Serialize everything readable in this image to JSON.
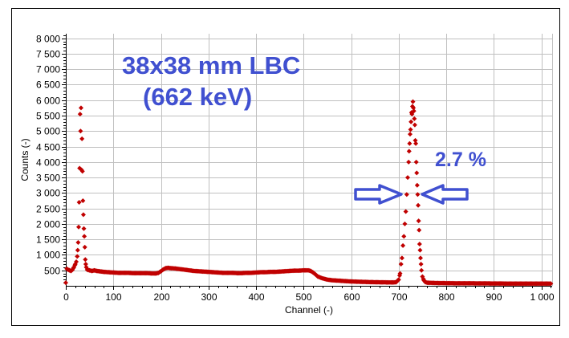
{
  "chart_data": {
    "type": "scatter",
    "title": "",
    "xlabel": "Channel (-)",
    "ylabel": "Counts (-)",
    "xlim": [
      0,
      1024
    ],
    "ylim": [
      0,
      8200
    ],
    "grid": true,
    "marker_color": "#c00000",
    "annotation_color": "#4050d0",
    "x_ticks": [
      0,
      100,
      200,
      300,
      400,
      500,
      600,
      700,
      800,
      900,
      1000
    ],
    "x_tick_labels": [
      "0",
      "100",
      "200",
      "300",
      "400",
      "500",
      "600",
      "700",
      "800",
      "900",
      "1 000"
    ],
    "y_ticks": [
      500,
      1000,
      1500,
      2000,
      2500,
      3000,
      3500,
      4000,
      4500,
      5000,
      5500,
      6000,
      6500,
      7000,
      7500,
      8000
    ],
    "y_tick_labels": [
      "500",
      "1 000",
      "1 500",
      "2 000",
      "2 500",
      "3 000",
      "3 500",
      "4 000",
      "4 500",
      "5 000",
      "5 500",
      "6 000",
      "6 500",
      "7 000",
      "7 500",
      "8 000"
    ],
    "annotations": {
      "detector": "38x38 mm LBC",
      "energy": "(662 keV)",
      "resolution": "2.7 %"
    },
    "points": [
      [
        0,
        100
      ],
      [
        2,
        550
      ],
      [
        5,
        520
      ],
      [
        8,
        500
      ],
      [
        11,
        480
      ],
      [
        14,
        520
      ],
      [
        17,
        600
      ],
      [
        20,
        700
      ],
      [
        22,
        780
      ],
      [
        24,
        950
      ],
      [
        25,
        1150
      ],
      [
        26,
        1400
      ],
      [
        27,
        1900
      ],
      [
        28,
        2700
      ],
      [
        29,
        3800
      ],
      [
        30,
        5550
      ],
      [
        31,
        5000
      ],
      [
        32,
        5750
      ],
      [
        33,
        3750
      ],
      [
        34,
        4750
      ],
      [
        35,
        3700
      ],
      [
        36,
        2750
      ],
      [
        37,
        2300
      ],
      [
        38,
        1850
      ],
      [
        39,
        1600
      ],
      [
        40,
        1250
      ],
      [
        41,
        850
      ],
      [
        42,
        700
      ],
      [
        43,
        600
      ],
      [
        45,
        520
      ],
      [
        50,
        500
      ],
      [
        55,
        480
      ],
      [
        60,
        500
      ],
      [
        65,
        480
      ],
      [
        70,
        470
      ],
      [
        75,
        460
      ],
      [
        80,
        450
      ],
      [
        90,
        440
      ],
      [
        100,
        430
      ],
      [
        110,
        420
      ],
      [
        120,
        420
      ],
      [
        130,
        420
      ],
      [
        140,
        410
      ],
      [
        150,
        410
      ],
      [
        160,
        410
      ],
      [
        170,
        410
      ],
      [
        180,
        400
      ],
      [
        190,
        400
      ],
      [
        195,
        420
      ],
      [
        200,
        470
      ],
      [
        205,
        530
      ],
      [
        210,
        570
      ],
      [
        215,
        580
      ],
      [
        220,
        570
      ],
      [
        230,
        560
      ],
      [
        240,
        540
      ],
      [
        250,
        520
      ],
      [
        260,
        500
      ],
      [
        270,
        480
      ],
      [
        280,
        470
      ],
      [
        290,
        460
      ],
      [
        300,
        450
      ],
      [
        310,
        440
      ],
      [
        320,
        430
      ],
      [
        330,
        420
      ],
      [
        340,
        420
      ],
      [
        350,
        420
      ],
      [
        360,
        410
      ],
      [
        370,
        410
      ],
      [
        380,
        420
      ],
      [
        390,
        420
      ],
      [
        400,
        430
      ],
      [
        410,
        440
      ],
      [
        420,
        440
      ],
      [
        430,
        450
      ],
      [
        440,
        450
      ],
      [
        450,
        460
      ],
      [
        460,
        470
      ],
      [
        470,
        480
      ],
      [
        480,
        490
      ],
      [
        490,
        490
      ],
      [
        500,
        500
      ],
      [
        510,
        500
      ],
      [
        515,
        480
      ],
      [
        520,
        430
      ],
      [
        525,
        370
      ],
      [
        530,
        300
      ],
      [
        540,
        240
      ],
      [
        550,
        200
      ],
      [
        560,
        180
      ],
      [
        580,
        160
      ],
      [
        600,
        140
      ],
      [
        620,
        130
      ],
      [
        640,
        120
      ],
      [
        660,
        115
      ],
      [
        680,
        110
      ],
      [
        690,
        110
      ],
      [
        695,
        120
      ],
      [
        700,
        200
      ],
      [
        703,
        400
      ],
      [
        705,
        700
      ],
      [
        707,
        900
      ],
      [
        709,
        1300
      ],
      [
        711,
        1600
      ],
      [
        713,
        2000
      ],
      [
        715,
        2400
      ],
      [
        717,
        2950
      ],
      [
        719,
        3500
      ],
      [
        721,
        4000
      ],
      [
        722,
        4350
      ],
      [
        723,
        4600
      ],
      [
        724,
        4900
      ],
      [
        725,
        5050
      ],
      [
        726,
        5300
      ],
      [
        727,
        5600
      ],
      [
        728,
        5550
      ],
      [
        729,
        5800
      ],
      [
        730,
        5950
      ],
      [
        731,
        5750
      ],
      [
        732,
        5650
      ],
      [
        733,
        5400
      ],
      [
        734,
        5200
      ],
      [
        735,
        4700
      ],
      [
        736,
        4600
      ],
      [
        737,
        4000
      ],
      [
        738,
        3650
      ],
      [
        739,
        3250
      ],
      [
        740,
        2950
      ],
      [
        741,
        2600
      ],
      [
        742,
        2100
      ],
      [
        743,
        1800
      ],
      [
        744,
        1350
      ],
      [
        745,
        1150
      ],
      [
        746,
        900
      ],
      [
        747,
        700
      ],
      [
        748,
        500
      ],
      [
        750,
        300
      ],
      [
        753,
        180
      ],
      [
        756,
        120
      ],
      [
        760,
        100
      ],
      [
        770,
        95
      ],
      [
        780,
        90
      ],
      [
        800,
        85
      ],
      [
        820,
        82
      ],
      [
        850,
        80
      ],
      [
        880,
        78
      ],
      [
        900,
        75
      ],
      [
        930,
        72
      ],
      [
        950,
        70
      ],
      [
        980,
        70
      ],
      [
        1000,
        70
      ],
      [
        1020,
        70
      ]
    ]
  }
}
